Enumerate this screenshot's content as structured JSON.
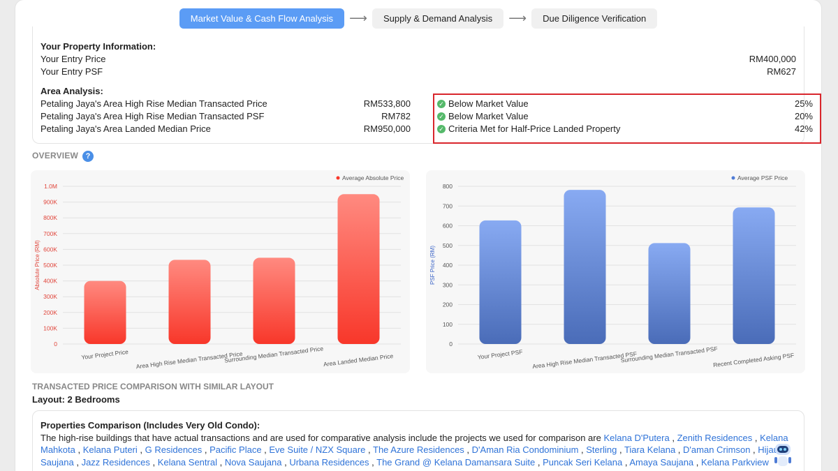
{
  "steps": [
    {
      "label": "Market Value & Cash Flow Analysis",
      "active": true
    },
    {
      "label": "Supply & Demand Analysis",
      "active": false
    },
    {
      "label": "Due Diligence Verification",
      "active": false
    }
  ],
  "property_info": {
    "title": "Your Property Information:",
    "entry_price_label": "Your Entry Price",
    "entry_price_value": "RM400,000",
    "entry_psf_label": "Your Entry PSF",
    "entry_psf_value": "RM627"
  },
  "area_analysis": {
    "title": "Area Analysis:",
    "rows": [
      {
        "label": "Petaling Jaya's Area High Rise Median Transacted Price",
        "value": "RM533,800",
        "status": "Below Market Value",
        "percent": "25%"
      },
      {
        "label": "Petaling Jaya's Area High Rise Median Transacted PSF",
        "value": "RM782",
        "status": "Below Market Value",
        "percent": "20%"
      },
      {
        "label": "Petaling Jaya's Area Landed Median Price",
        "value": "RM950,000",
        "status": "Criteria Met for Half-Price Landed Property",
        "percent": "42%"
      }
    ]
  },
  "overview": {
    "title": "OVERVIEW",
    "help": "?"
  },
  "chart_data": [
    {
      "type": "bar",
      "categories": [
        "Your Project Price",
        "Area High Rise Median Transacted Price",
        "Surrounding Median Transacted Price",
        "Area Landed Median Price"
      ],
      "series": [
        {
          "name": "Average Absolute Price",
          "values": [
            400000,
            533800,
            547000,
            950000
          ]
        }
      ],
      "ylabel": "Absolute Price (RM)",
      "ylim": [
        0,
        1000000
      ],
      "yticks": [
        "0",
        "100K",
        "200K",
        "300K",
        "400K",
        "500K",
        "600K",
        "700K",
        "800K",
        "900K",
        "1.0M"
      ],
      "color": "#f8372a",
      "legend": "top-right"
    },
    {
      "type": "bar",
      "categories": [
        "Your Project PSF",
        "Area High Rise Median Transacted PSF",
        "Surrounding Median Transacted PSF",
        "Recent Completed Asking PSF"
      ],
      "series": [
        {
          "name": "Average PSF Price",
          "values": [
            627,
            782,
            512,
            693
          ]
        }
      ],
      "ylabel": "PSF Price (RM)",
      "ylim": [
        0,
        800
      ],
      "yticks": [
        "0",
        "100",
        "200",
        "300",
        "400",
        "500",
        "600",
        "700",
        "800"
      ],
      "color": "#4f7cd6",
      "legend": "top-right"
    }
  ],
  "transacted": {
    "title": "TRANSACTED PRICE COMPARISON WITH SIMILAR LAYOUT",
    "layout": "Layout: 2 Bedrooms"
  },
  "comparison": {
    "title": "Properties Comparison (Includes Very Old Condo):",
    "intro": "The high-rise buildings that have actual transactions and are used for comparative analysis include the projects we used for comparison are ",
    "projects": [
      "Kelana D'Putera",
      "Zenith Residences",
      "Kelana Mahkota",
      "Kelana Puteri",
      "G Residences",
      "Pacific Place",
      "Eve Suite / NZX Square",
      "The Azure Residences",
      "D'Aman Ria Condominium",
      "Sterling",
      "Tiara Kelana",
      "D'aman Crimson",
      "Hijauan Saujana",
      "Jazz Residences",
      "Kelana Sentral",
      "Nova Saujana",
      "Urbana Residences",
      "The Grand @ Kelana Damansara Suite",
      "Puncak Seri Kelana",
      "Amaya Saujana",
      "Kelana Parkview"
    ]
  }
}
